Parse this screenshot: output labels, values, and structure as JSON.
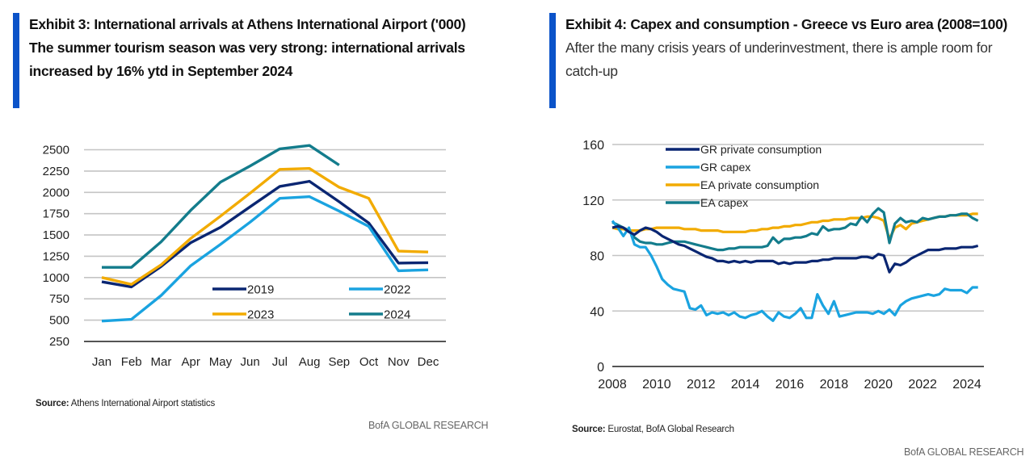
{
  "exhibit3": {
    "title": "Exhibit 3: International arrivals at Athens International Airport ('000)",
    "subtitle": "The summer tourism season was very strong: international arrivals increased by 16% ytd in September 2024",
    "source_label": "Source:",
    "source_text": " Athens International Airport statistics",
    "brand": "BofA GLOBAL RESEARCH"
  },
  "exhibit4": {
    "title": "Exhibit 4: Capex and consumption - Greece vs Euro area (2008=100)",
    "subtitle": "After the many crisis years of underinvestment, there is ample room for catch-up",
    "source_label": "Source:",
    "source_text": " Eurostat, BofA Global Research",
    "brand": "BofA GLOBAL RESEARCH"
  },
  "chart_data": [
    {
      "type": "line",
      "title": "International arrivals at Athens International Airport ('000)",
      "xlabel": "",
      "ylabel": "",
      "categories": [
        "Jan",
        "Feb",
        "Mar",
        "Apr",
        "May",
        "Jun",
        "Jul",
        "Aug",
        "Sep",
        "Oct",
        "Nov",
        "Dec"
      ],
      "yticks": [
        250,
        500,
        750,
        1000,
        1250,
        1500,
        1750,
        2000,
        2250,
        2500
      ],
      "ylim": [
        250,
        2500
      ],
      "grid": true,
      "legend": "center-right",
      "series": [
        {
          "name": "2019",
          "color": "#0a2672",
          "values": [
            950,
            890,
            1130,
            1410,
            1590,
            1830,
            2070,
            2130,
            1890,
            1640,
            1170,
            1175
          ]
        },
        {
          "name": "2022",
          "color": "#1aa3e0",
          "values": [
            490,
            510,
            790,
            1140,
            1390,
            1650,
            1930,
            1950,
            1780,
            1600,
            1080,
            1090
          ]
        },
        {
          "name": "2023",
          "color": "#f2ab00",
          "values": [
            1000,
            920,
            1150,
            1460,
            1720,
            1990,
            2270,
            2280,
            2060,
            1930,
            1310,
            1300
          ]
        },
        {
          "name": "2024",
          "color": "#137c8c",
          "values": [
            1120,
            1120,
            1420,
            1790,
            2120,
            2310,
            2510,
            2550,
            2320,
            null,
            null,
            null
          ]
        }
      ]
    },
    {
      "type": "line",
      "title": "Capex and consumption - Greece vs Euro area (2008=100)",
      "xlabel": "",
      "ylabel": "",
      "xticks": [
        2008,
        2010,
        2012,
        2014,
        2016,
        2018,
        2020,
        2022,
        2024
      ],
      "yticks": [
        0,
        40,
        80,
        120,
        160
      ],
      "ylim": [
        0,
        160
      ],
      "xlim": [
        2008,
        2024.9
      ],
      "grid": true,
      "legend": "top-center",
      "x": [
        2008.0,
        2008.25,
        2008.5,
        2008.75,
        2009.0,
        2009.25,
        2009.5,
        2009.75,
        2010.0,
        2010.25,
        2010.5,
        2010.75,
        2011.0,
        2011.25,
        2011.5,
        2011.75,
        2012.0,
        2012.25,
        2012.5,
        2012.75,
        2013.0,
        2013.25,
        2013.5,
        2013.75,
        2014.0,
        2014.25,
        2014.5,
        2014.75,
        2015.0,
        2015.25,
        2015.5,
        2015.75,
        2016.0,
        2016.25,
        2016.5,
        2016.75,
        2017.0,
        2017.25,
        2017.5,
        2017.75,
        2018.0,
        2018.25,
        2018.5,
        2018.75,
        2019.0,
        2019.25,
        2019.5,
        2019.75,
        2020.0,
        2020.25,
        2020.5,
        2020.75,
        2021.0,
        2021.25,
        2021.5,
        2021.75,
        2022.0,
        2022.25,
        2022.5,
        2022.75,
        2023.0,
        2023.25,
        2023.5,
        2023.75,
        2024.0,
        2024.25,
        2024.5
      ],
      "series": [
        {
          "name": "GR private consumption",
          "color": "#0a2672",
          "values": [
            100,
            101,
            100,
            97,
            95,
            98,
            100,
            99,
            97,
            94,
            92,
            90,
            88,
            87,
            85,
            83,
            81,
            79,
            78,
            76,
            76,
            75,
            76,
            75,
            76,
            75,
            76,
            76,
            76,
            76,
            74,
            75,
            74,
            75,
            75,
            75,
            76,
            76,
            77,
            77,
            78,
            78,
            78,
            78,
            78,
            79,
            79,
            78,
            81,
            80,
            68,
            74,
            73,
            75,
            78,
            80,
            82,
            84,
            84,
            84,
            85,
            85,
            85,
            86,
            86,
            86,
            87
          ]
        },
        {
          "name": "GR capex",
          "color": "#1aa3e0",
          "values": [
            105,
            100,
            94,
            100,
            88,
            86,
            86,
            80,
            72,
            63,
            59,
            56,
            55,
            54,
            42,
            41,
            44,
            37,
            39,
            38,
            39,
            37,
            39,
            36,
            35,
            37,
            38,
            40,
            36,
            33,
            39,
            36,
            35,
            38,
            42,
            35,
            35,
            52,
            44,
            38,
            47,
            36,
            37,
            38,
            39,
            39,
            39,
            38,
            40,
            38,
            41,
            37,
            44,
            47,
            49,
            50,
            51,
            52,
            51,
            52,
            56,
            55,
            55,
            55,
            53,
            57,
            57
          ]
        },
        {
          "name": "EA private consumption",
          "color": "#f2ab00",
          "values": [
            100,
            99,
            99,
            98,
            98,
            98,
            99,
            99,
            100,
            100,
            100,
            100,
            100,
            99,
            99,
            99,
            98,
            98,
            98,
            98,
            97,
            97,
            97,
            97,
            97,
            98,
            98,
            99,
            99,
            100,
            100,
            101,
            101,
            102,
            102,
            103,
            104,
            104,
            105,
            105,
            106,
            106,
            106,
            107,
            107,
            107,
            108,
            108,
            107,
            105,
            92,
            100,
            102,
            99,
            103,
            104,
            105,
            106,
            107,
            108,
            108,
            109,
            109,
            109,
            109,
            110,
            110
          ]
        },
        {
          "name": "EA capex",
          "color": "#137c8c",
          "values": [
            104,
            102,
            100,
            98,
            93,
            90,
            89,
            89,
            88,
            88,
            89,
            90,
            90,
            90,
            89,
            88,
            87,
            86,
            85,
            84,
            84,
            85,
            85,
            86,
            86,
            86,
            86,
            86,
            87,
            93,
            89,
            92,
            92,
            93,
            93,
            94,
            96,
            95,
            101,
            98,
            99,
            99,
            100,
            103,
            102,
            108,
            104,
            110,
            114,
            111,
            89,
            103,
            107,
            104,
            105,
            104,
            107,
            106,
            107,
            108,
            108,
            109,
            109,
            110,
            110,
            107,
            105
          ]
        }
      ]
    }
  ]
}
